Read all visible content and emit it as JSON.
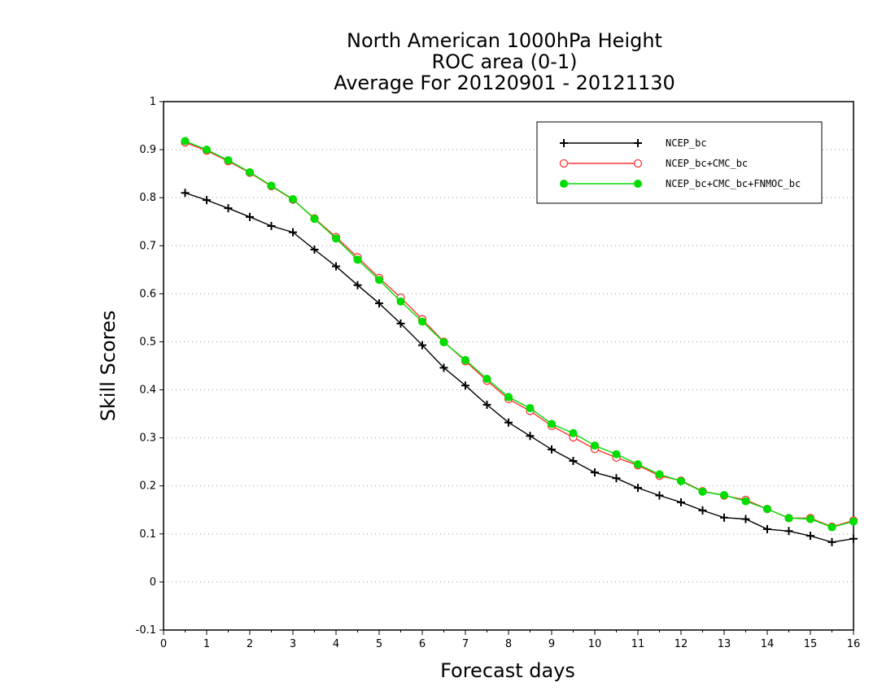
{
  "chart_data": {
    "type": "line",
    "title_lines": [
      "North American 1000hPa Height",
      "ROC area (0-1)",
      "Average For 20120901 - 20121130"
    ],
    "xlabel": "Forecast days",
    "ylabel": "Skill Scores",
    "xlim": [
      0,
      16
    ],
    "ylim": [
      -0.1,
      1
    ],
    "xticks": [
      0,
      1,
      2,
      3,
      4,
      5,
      6,
      7,
      8,
      9,
      10,
      11,
      12,
      13,
      14,
      15,
      16
    ],
    "yticks": [
      -0.1,
      0,
      0.1,
      0.2,
      0.3,
      0.4,
      0.5,
      0.6,
      0.7,
      0.8,
      0.9,
      1
    ],
    "ytick_labels": [
      "-0.1",
      "0",
      "0.1",
      "0.2",
      "0.3",
      "0.4",
      "0.5",
      "0.6",
      "0.7",
      "0.8",
      "0.9",
      "1"
    ],
    "grid": "horizontal dotted",
    "legend_position": "top-right",
    "x": [
      0.5,
      1,
      1.5,
      2,
      2.5,
      3,
      3.5,
      4,
      4.5,
      5,
      5.5,
      6,
      6.5,
      7,
      7.5,
      8,
      8.5,
      9,
      9.5,
      10,
      10.5,
      11,
      11.5,
      12,
      12.5,
      13,
      13.5,
      14,
      14.5,
      15,
      15.5,
      16
    ],
    "series": [
      {
        "name": "NCEP_bc",
        "color": "#000000",
        "marker": "plus",
        "values": [
          0.81,
          0.795,
          0.778,
          0.76,
          0.741,
          0.728,
          0.692,
          0.657,
          0.618,
          0.58,
          0.538,
          0.493,
          0.446,
          0.409,
          0.369,
          0.332,
          0.304,
          0.276,
          0.252,
          0.228,
          0.216,
          0.196,
          0.18,
          0.166,
          0.149,
          0.134,
          0.131,
          0.11,
          0.106,
          0.096,
          0.083,
          0.09
        ]
      },
      {
        "name": "NCEP_bc+CMC_bc",
        "color": "#ff3333",
        "marker": "open-circle",
        "values": [
          0.915,
          0.898,
          0.876,
          0.852,
          0.824,
          0.796,
          0.757,
          0.718,
          0.676,
          0.633,
          0.592,
          0.547,
          0.5,
          0.46,
          0.419,
          0.381,
          0.356,
          0.325,
          0.301,
          0.277,
          0.259,
          0.243,
          0.221,
          0.211,
          0.189,
          0.18,
          0.171,
          0.152,
          0.133,
          0.133,
          0.115,
          0.128
        ]
      },
      {
        "name": "NCEP_bc+CMC_bc+FNMOC_bc",
        "color": "#00dd00",
        "marker": "filled-circle",
        "values": [
          0.918,
          0.9,
          0.878,
          0.853,
          0.825,
          0.797,
          0.756,
          0.715,
          0.671,
          0.629,
          0.584,
          0.542,
          0.499,
          0.462,
          0.423,
          0.385,
          0.362,
          0.329,
          0.31,
          0.284,
          0.266,
          0.245,
          0.224,
          0.21,
          0.188,
          0.181,
          0.168,
          0.152,
          0.133,
          0.131,
          0.114,
          0.126
        ]
      }
    ]
  }
}
